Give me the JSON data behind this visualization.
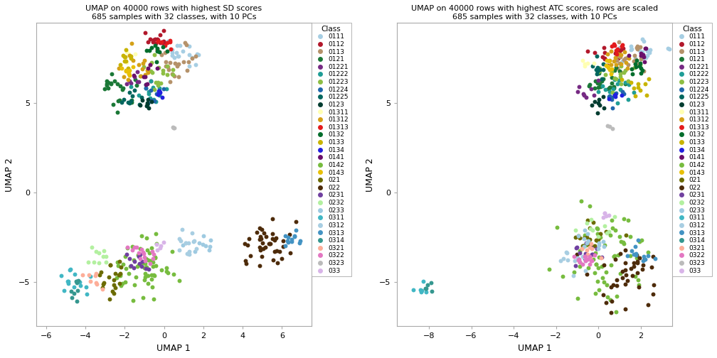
{
  "title1": "UMAP on 40000 rows with highest SD scores\n685 samples with 32 classes, with 10 PCs",
  "title2": "UMAP on 40000 rows with highest ATC scores, rows are scaled\n685 samples with 32 classes, with 10 PCs",
  "xlabel": "UMAP 1",
  "ylabel": "UMAP 2",
  "classes": [
    "0111",
    "0112",
    "0113",
    "0121",
    "01221",
    "01222",
    "01223",
    "01224",
    "01225",
    "0123",
    "01311",
    "01312",
    "01313",
    "0132",
    "0133",
    "0134",
    "0141",
    "0142",
    "0143",
    "021",
    "022",
    "0231",
    "0232",
    "0233",
    "0311",
    "0312",
    "0313",
    "0314",
    "0321",
    "0322",
    "0323",
    "033"
  ],
  "colors": [
    "#A6CEE3",
    "#B2182B",
    "#B5926A",
    "#1B7837",
    "#762A83",
    "#1F9D96",
    "#8EBE44",
    "#2166AC",
    "#01665E",
    "#003C30",
    "#FFFFB3",
    "#D4A017",
    "#E31A1C",
    "#006D2C",
    "#C8B400",
    "#2121DE",
    "#6A0F6A",
    "#77BC3F",
    "#E8C007",
    "#6B6B00",
    "#4D2B0A",
    "#7040A0",
    "#B3F0A0",
    "#9ECAE1",
    "#41B7C4",
    "#A8CEE2",
    "#4393C3",
    "#35978F",
    "#FDAE99",
    "#E377C2",
    "#BBBBBB",
    "#D8B4E8"
  ],
  "xlim1": [
    -6.5,
    7.5
  ],
  "ylim1": [
    -7.5,
    9.5
  ],
  "xlim2": [
    -9.5,
    3.5
  ],
  "ylim2": [
    -7.5,
    9.5
  ],
  "xticks1": [
    -6,
    -4,
    -2,
    0,
    2,
    4,
    6
  ],
  "yticks1": [
    -5,
    0,
    5
  ],
  "xticks2": [
    -8,
    -6,
    -4,
    -2,
    0,
    2
  ],
  "yticks2": [
    -5,
    0,
    5
  ]
}
